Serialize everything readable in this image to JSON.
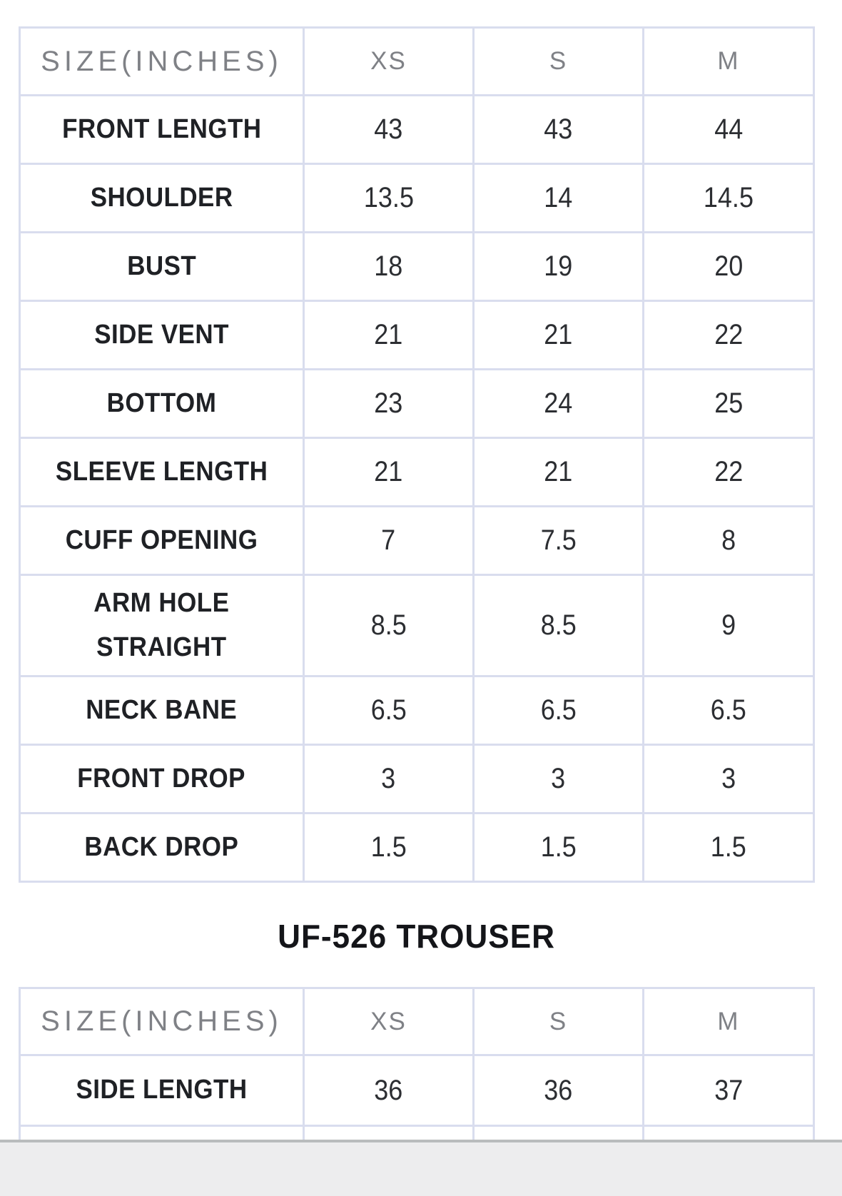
{
  "colors": {
    "table_border": "#d9ddee",
    "header_text": "#7f8186",
    "label_text": "#1f2125",
    "value_text": "#2c2e32",
    "footer_band": "#ededee",
    "footer_band_edge": "#b9bcbd"
  },
  "shirt_table": {
    "header": [
      "SIZE(INCHES)",
      "XS",
      "S",
      "M"
    ],
    "rows": [
      {
        "label": "FRONT LENGTH",
        "values": [
          "43",
          "43",
          "44"
        ]
      },
      {
        "label": "SHOULDER",
        "values": [
          "13.5",
          "14",
          "14.5"
        ]
      },
      {
        "label": "BUST",
        "values": [
          "18",
          "19",
          "20"
        ]
      },
      {
        "label": "SIDE VENT",
        "values": [
          "21",
          "21",
          "22"
        ]
      },
      {
        "label": "BOTTOM",
        "values": [
          "23",
          "24",
          "25"
        ]
      },
      {
        "label": "SLEEVE LENGTH",
        "values": [
          "21",
          "21",
          "22"
        ]
      },
      {
        "label": "CUFF OPENING",
        "values": [
          "7",
          "7.5",
          "8"
        ]
      },
      {
        "label": "ARM HOLE\nSTRAIGHT",
        "values": [
          "8.5",
          "8.5",
          "9"
        ]
      },
      {
        "label": "NECK BANE",
        "values": [
          "6.5",
          "6.5",
          "6.5"
        ]
      },
      {
        "label": "FRONT DROP",
        "values": [
          "3",
          "3",
          "3"
        ]
      },
      {
        "label": "BACK DROP",
        "values": [
          "1.5",
          "1.5",
          "1.5"
        ]
      }
    ]
  },
  "trouser_section": {
    "title": "UF-526 TROUSER",
    "table": {
      "header": [
        "SIZE(INCHES)",
        "XS",
        "S",
        "M"
      ],
      "rows": [
        {
          "label": "SIDE LENGTH",
          "values": [
            "36",
            "36",
            "37"
          ]
        },
        {
          "label": "",
          "values": [
            "",
            "",
            ""
          ]
        }
      ]
    }
  }
}
